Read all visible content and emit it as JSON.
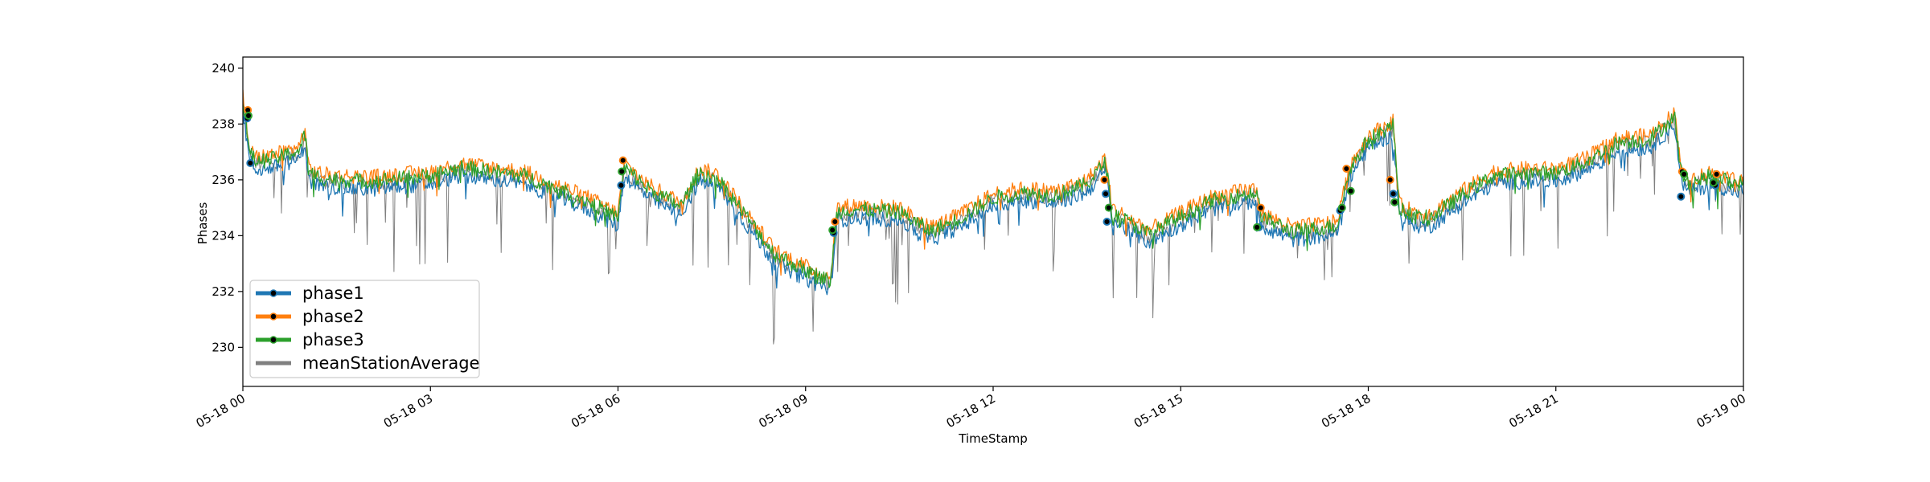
{
  "chart_data": {
    "type": "line",
    "title": "",
    "xlabel": "TimeStamp",
    "ylabel": "Phases",
    "x_range": [
      "2024-05-18 00:00",
      "2024-05-19 00:00"
    ],
    "ylim": [
      228.6,
      240.4
    ],
    "grid": false,
    "legend_position": "lower-left",
    "x_ticks": [
      {
        "label": "05-18 00",
        "hour": 0
      },
      {
        "label": "05-18 03",
        "hour": 3
      },
      {
        "label": "05-18 06",
        "hour": 6
      },
      {
        "label": "05-18 09",
        "hour": 9
      },
      {
        "label": "05-18 12",
        "hour": 12
      },
      {
        "label": "05-18 15",
        "hour": 15
      },
      {
        "label": "05-18 18",
        "hour": 18
      },
      {
        "label": "05-18 21",
        "hour": 21
      },
      {
        "label": "05-19 00",
        "hour": 24
      }
    ],
    "y_ticks": [
      230,
      232,
      234,
      236,
      238,
      240
    ],
    "base_profile": {
      "hours": [
        0,
        0.1,
        0.2,
        0.5,
        0.9,
        1.0,
        1.05,
        1.3,
        2.0,
        3.0,
        3.5,
        4.5,
        5.5,
        6.0,
        6.1,
        6.5,
        7.0,
        7.3,
        7.6,
        8.0,
        8.5,
        9.0,
        9.4,
        9.5,
        9.8,
        10.5,
        11.0,
        11.5,
        12.0,
        12.5,
        13.0,
        13.5,
        13.8,
        13.9,
        14.5,
        14.8,
        15.5,
        16.2,
        16.3,
        16.8,
        17.5,
        17.7,
        18.0,
        18.4,
        18.5,
        18.8,
        19.0,
        19.5,
        20.0,
        20.5,
        21.0,
        21.5,
        22.0,
        22.5,
        22.9,
        23.0,
        23.1,
        23.5,
        23.9,
        24.0
      ],
      "values": [
        238.8,
        237.0,
        236.6,
        236.7,
        237.0,
        237.6,
        236.2,
        236.0,
        235.9,
        236.1,
        236.4,
        236.1,
        235.2,
        234.6,
        236.4,
        235.6,
        235.0,
        236.2,
        236.0,
        234.8,
        233.3,
        232.7,
        232.3,
        234.8,
        234.9,
        234.8,
        234.1,
        234.6,
        235.3,
        235.5,
        235.4,
        235.8,
        236.6,
        234.8,
        234.0,
        234.4,
        235.2,
        235.5,
        234.6,
        234.1,
        234.3,
        236.3,
        237.4,
        237.9,
        234.9,
        234.6,
        234.6,
        235.4,
        236.1,
        236.2,
        236.2,
        236.6,
        237.3,
        237.4,
        238.2,
        236.3,
        235.8,
        236.1,
        235.8,
        235.9
      ]
    },
    "series": [
      {
        "name": "phase1",
        "color": "#1f77b4",
        "offset": -0.25
      },
      {
        "name": "phase2",
        "color": "#ff7f0e",
        "offset": 0.2
      },
      {
        "name": "phase3",
        "color": "#2ca02c",
        "offset": 0.05
      },
      {
        "name": "meanStationAverage",
        "color": "#808080",
        "offset": -0.05
      }
    ],
    "markers": {
      "phase1": [
        [
          0.07,
          238.2
        ],
        [
          0.12,
          236.6
        ],
        [
          6.05,
          235.8
        ],
        [
          9.45,
          234.1
        ],
        [
          13.8,
          235.5
        ],
        [
          13.82,
          234.5
        ],
        [
          16.25,
          234.3
        ],
        [
          17.55,
          234.9
        ],
        [
          18.4,
          235.5
        ],
        [
          23.0,
          235.4
        ],
        [
          23.55,
          235.8
        ]
      ],
      "phase2": [
        [
          0.08,
          238.5
        ],
        [
          6.08,
          236.7
        ],
        [
          9.47,
          234.5
        ],
        [
          13.78,
          236.0
        ],
        [
          16.28,
          235.0
        ],
        [
          17.65,
          236.4
        ],
        [
          18.35,
          236.0
        ],
        [
          23.02,
          236.3
        ],
        [
          23.57,
          236.2
        ]
      ],
      "phase3": [
        [
          0.09,
          238.3
        ],
        [
          6.06,
          236.3
        ],
        [
          9.43,
          234.2
        ],
        [
          13.85,
          235.0
        ],
        [
          16.22,
          234.3
        ],
        [
          17.58,
          235.0
        ],
        [
          17.72,
          235.6
        ],
        [
          18.42,
          235.2
        ],
        [
          23.05,
          236.2
        ],
        [
          23.52,
          235.9
        ]
      ]
    }
  }
}
